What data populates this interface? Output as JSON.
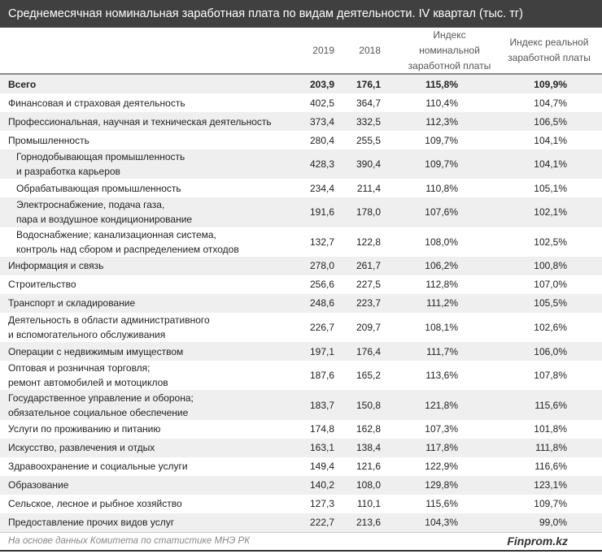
{
  "title": "Среднемесячная номинальная заработная плата по видам деятельности. IV квартал (тыс. тг)",
  "columns": {
    "y2019": "2019",
    "y2018": "2018",
    "nominal": "Индекс\nноминальной\nзаработной платы",
    "real": "Индекс реальной\nзаработной платы"
  },
  "rows": [
    {
      "label": "Всего",
      "v2019": "203,9",
      "v2018": "176,1",
      "nominal": "115,8%",
      "real": "109,9%"
    },
    {
      "label": "Финансовая и страховая деятельность",
      "v2019": "402,5",
      "v2018": "364,7",
      "nominal": "110,4%",
      "real": "104,7%"
    },
    {
      "label": "Профессиональная, научная и техническая деятельность",
      "v2019": "373,4",
      "v2018": "332,5",
      "nominal": "112,3%",
      "real": "106,5%"
    },
    {
      "label": "Промышленность",
      "v2019": "280,4",
      "v2018": "255,5",
      "nominal": "109,7%",
      "real": "104,1%"
    },
    {
      "label": "Горнодобывающая промышленность\nи разработка карьеров",
      "v2019": "428,3",
      "v2018": "390,4",
      "nominal": "109,7%",
      "real": "104,1%"
    },
    {
      "label": "Обрабатывающая промышленность",
      "v2019": "234,4",
      "v2018": "211,4",
      "nominal": "110,8%",
      "real": "105,1%"
    },
    {
      "label": "Электроснабжение, подача газа,\nпара и воздушное  кондиционирование",
      "v2019": "191,6",
      "v2018": "178,0",
      "nominal": "107,6%",
      "real": "102,1%"
    },
    {
      "label": "Водоснабжение; канализационная система,\nконтроль над сбором и распределением отходов",
      "v2019": "132,7",
      "v2018": "122,8",
      "nominal": "108,0%",
      "real": "102,5%"
    },
    {
      "label": "Информация и связь",
      "v2019": "278,0",
      "v2018": "261,7",
      "nominal": "106,2%",
      "real": "100,8%"
    },
    {
      "label": "Строительство",
      "v2019": "256,6",
      "v2018": "227,5",
      "nominal": "112,8%",
      "real": "107,0%"
    },
    {
      "label": "Транспорт и складирование",
      "v2019": "248,6",
      "v2018": "223,7",
      "nominal": "111,2%",
      "real": "105,5%"
    },
    {
      "label": "Деятельность в области административного\nи вспомогательного обслуживания",
      "v2019": "226,7",
      "v2018": "209,7",
      "nominal": "108,1%",
      "real": "102,6%"
    },
    {
      "label": "Операции с недвижимым имуществом",
      "v2019": "197,1",
      "v2018": "176,4",
      "nominal": "111,7%",
      "real": "106,0%"
    },
    {
      "label": "Оптовая и розничная торговля;\nремонт автомобилей и мотоциклов",
      "v2019": "187,6",
      "v2018": "165,2",
      "nominal": "113,6%",
      "real": "107,8%"
    },
    {
      "label": "Государственное управление и оборона;\nобязательное социальное обеспечение",
      "v2019": "183,7",
      "v2018": "150,8",
      "nominal": "121,8%",
      "real": "115,6%"
    },
    {
      "label": "Услуги по проживанию и питанию",
      "v2019": "174,8",
      "v2018": "162,8",
      "nominal": "107,3%",
      "real": "101,8%"
    },
    {
      "label": "Искусство, развлечения и отдых",
      "v2019": "163,1",
      "v2018": "138,4",
      "nominal": "117,8%",
      "real": "111,8%"
    },
    {
      "label": "Здравоохранение и социальные услуги",
      "v2019": "149,4",
      "v2018": "121,6",
      "nominal": "122,9%",
      "real": "116,6%"
    },
    {
      "label": "Образование",
      "v2019": "140,2",
      "v2018": "108,0",
      "nominal": "129,8%",
      "real": "123,1%"
    },
    {
      "label": "Сельское, лесное и рыбное хозяйство",
      "v2019": "127,3",
      "v2018": "110,1",
      "nominal": "115,6%",
      "real": "109,7%"
    },
    {
      "label": "Предоставление прочих видов услуг",
      "v2019": "222,7",
      "v2018": "213,6",
      "nominal": "104,3%",
      "real": "99,0%"
    }
  ],
  "footer": {
    "source": "На основе данных Комитета по статистике МНЭ РК",
    "brand": "Finprom.kz"
  },
  "colors": {
    "title_bg": "#404040",
    "stripe": "#efefef"
  }
}
